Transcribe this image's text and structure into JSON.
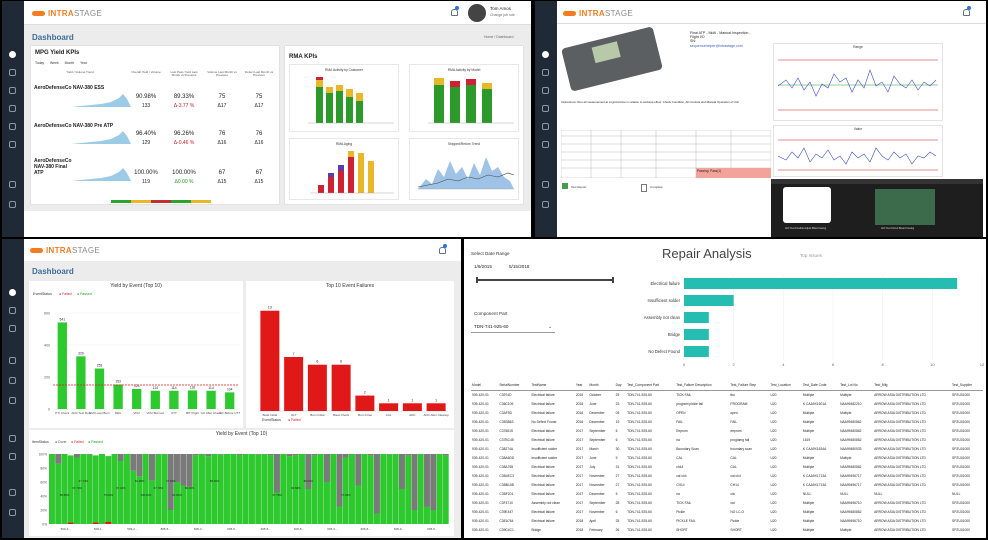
{
  "brand": {
    "name_a": "INTRA",
    "name_b": "STAGE",
    "color": "#f47b20"
  },
  "q1": {
    "user_name": "Tom Amos",
    "user_role": "Change job role",
    "title": "Dashboard",
    "crumb_home": "Home",
    "crumb_sep": "/",
    "crumb_page": "Dashboard",
    "mpg": {
      "title": "MPG Yield KPIs",
      "tabs": [
        "Today",
        "Week",
        "Month",
        "Year"
      ],
      "cols": [
        "Yield / Volume Trend",
        "Overall Yield / Volume",
        "Last Pass Yield Last Month vs Previous",
        "Volume Last Month vs Previous",
        "Defect Last Month vs Previous"
      ],
      "rows": [
        {
          "name": "AeroDefenseCo NAV-380 ESS",
          "yield": "90.98%",
          "vol": "133",
          "lpy": "89.33%",
          "lpy_d": "Δ-3.77 %",
          "volm": "75",
          "volm_d": "Δ17",
          "def": "75",
          "def_d": "Δ17"
        },
        {
          "name": "AeroDefenseCo NAV-380 Pre ATP",
          "yield": "96.40%",
          "vol": "129",
          "lpy": "96.26%",
          "lpy_d": "Δ-0.46 %",
          "volm": "76",
          "volm_d": "Δ16",
          "def": "76",
          "def_d": "Δ16"
        },
        {
          "name": "AeroDefenseCo NAV-380 Final ATP",
          "yield": "100.00%",
          "vol": "119",
          "lpy": "100.00%",
          "lpy_d": "Δ0.00 %",
          "volm": "67",
          "volm_d": "Δ15",
          "def": "67",
          "def_d": "Δ15"
        }
      ]
    },
    "rma": {
      "title": "RMA KPIs",
      "c1": "RMA Activity by Customer",
      "c2": "RMA Activity by Model",
      "c3": "RMA Aging",
      "c4": "Shipped/Return Trend"
    }
  },
  "q2": {
    "header_line1": "Final ATP - Multi - Manual Inspection -",
    "header_line2": "Flight I/O",
    "header_line3": "SN:",
    "header_line4": "sequencehelper@intrastage.com",
    "chart1_title": "Range",
    "chart2_title": "Value",
    "instruction": "Instructions: Run all measurement at a typical time in relation to ambient effect. Check Condition, All Controls and Manual Operation of Unit",
    "status": "Passing: Pass(1)",
    "bottom_left": "Test Report",
    "bottom_mid": "Complete",
    "img_label1": "AIO Test Flexible Adjust Blast Casing",
    "img_label2": "AIO Test Circuit Board Casing"
  },
  "q3": {
    "title": "Dashboard",
    "chart1": {
      "title": "Yield by Event (Top 10)",
      "legend_title": "EventStatus",
      "legend": [
        "Failed",
        "Passed"
      ],
      "categories": [
        "PTI Check",
        "ADC Test Run",
        "EMI Level Burn",
        "RDC",
        "VDU",
        "VDU Burnout",
        "UTT",
        "BIT Flight",
        "GC After Check",
        "GC Before UTT"
      ],
      "values": [
        541,
        329,
        253,
        153,
        125,
        114,
        114,
        116,
        114,
        104
      ],
      "labels": [
        "541",
        "329",
        "253",
        "153",
        "125",
        "114",
        "114",
        "116",
        "114",
        "104"
      ],
      "ylim": [
        0,
        600
      ],
      "yticks": [
        "600",
        "400",
        "200",
        "0"
      ]
    },
    "chart2": {
      "title": "Top 10 Event Failures",
      "legend_title": "EventStatus",
      "legend": [
        "Failed"
      ],
      "categories": [
        "Build Initial",
        "OLT",
        "Burn Initial",
        "Blast Check",
        "Burn Final",
        "CAL",
        "ADC",
        "ADC After Cleanup"
      ],
      "values": [
        13,
        7,
        6,
        6,
        2,
        1,
        1,
        1
      ],
      "labels": [
        "13",
        "7",
        "6",
        "6",
        "2",
        "1",
        "1",
        "1"
      ]
    },
    "chart3": {
      "title": "Yield by Event (Top 10)",
      "legend_title": "ItemStatus",
      "legend": [
        "Done",
        "Failed",
        "Passed"
      ],
      "yticks": [
        "100%",
        "80%",
        "60%",
        "40%",
        "20%",
        "0%"
      ],
      "xlabels": [
        "509-3...",
        "509-1...",
        "509-2...",
        "805-5...",
        "605-3...",
        "605-5...",
        "605-5...",
        "606-5...",
        "606-3...",
        "606-5...",
        "605-9...",
        "605-5..."
      ],
      "percent_labels": [
        "85.65%",
        "97.70%",
        "67.74%",
        "75.00%",
        "97.16%",
        "60.98%",
        "100.00%",
        "97.70%",
        "97.84%",
        "81.82%",
        "80.00%",
        "88.00%",
        "97.78%",
        "96.68%",
        "88.60%",
        "97.83%"
      ]
    }
  },
  "q4": {
    "date_label": "Select Date Range",
    "date_from": "1/9/2015",
    "date_to": "5/15/2018",
    "title": "Repair Analysis",
    "top_issues": "Top Issues",
    "component_label": "Component Part",
    "component_value": "TDN-741-925-60",
    "bar_categories": [
      "Electrical failure",
      "Insufficient solder",
      "Assembly not clean",
      "Bridge",
      "No Defect Found"
    ],
    "bar_values": [
      11,
      2,
      1,
      1,
      1
    ],
    "x_ticks": [
      "0",
      "2",
      "4",
      "6",
      "8",
      "10",
      "12"
    ],
    "columns": [
      "Model",
      "SerialNumber",
      "TestName",
      "Year",
      "Month",
      "Day",
      "Test_Component Part",
      "Test_Failure Description",
      "Test_Failure Step",
      "Test_Location",
      "Test_Date Code",
      "Test_Lot No",
      "Test_Mfg",
      "Test_Supplier"
    ],
    "rows": [
      [
        "939-420-01",
        "C3974D",
        "Electrical failure",
        "2016",
        "October",
        "25",
        "TDN-741-925-60",
        "TICK FAIL",
        "tbu",
        "U20",
        "Multiple",
        "Multiple",
        "ARROW ASIA DISTRIBUTION LTD",
        "SPZU01000"
      ],
      [
        "939-420-01",
        "C36C109",
        "Electrical failure",
        "2016",
        "June",
        "23",
        "TDN-741-925-60",
        "program pickle fail",
        "PROGRAM",
        "U20",
        "K CAA9X1601A",
        "NAA99482210",
        "ARROW ASIA DISTRIBUTION LTD",
        "SPZU01000"
      ],
      [
        "939-420-01",
        "C3AF9D",
        "Electrical failure",
        "2016",
        "December",
        "05",
        "TDN-741-925-60",
        "OPEN",
        "open",
        "U20",
        "Multiple",
        "Multiple",
        "ARROW ASIA DISTRIBUTION LTD",
        "SPZU01000"
      ],
      [
        "939-420-01",
        "C3B3B63",
        "No Defect Found",
        "2016",
        "December",
        "19",
        "TDN-741-925-60",
        "FAIL",
        "FAIL",
        "U20",
        "Multiple",
        "NAA99480862",
        "ARROW ASIA DISTRIBUTION LTD",
        "SPZU01000"
      ],
      [
        "939-420-01",
        "C37681S",
        "Electrical failure",
        "2017",
        "September",
        "6",
        "TDN-741-925-60",
        "Eeprom",
        "eeprom",
        "U20",
        "Multiple",
        "NAA99480862",
        "ARROW ASIA DISTRIBUTION LTD",
        "SPZU01000"
      ],
      [
        "939-420-01",
        "C37BC45",
        "Electrical failure",
        "2017",
        "September",
        "6",
        "TDN-741-925-60",
        "na",
        "proglamg fail",
        "U20",
        "1619",
        "NAA99480862",
        "ARROW ASIA DISTRIBUTION LTD",
        "SPZU01000"
      ],
      [
        "939-420-01",
        "C38274A",
        "Insufficient solder",
        "2017",
        "March",
        "30",
        "TDN-741-925-60",
        "Boundary Scan",
        "boundary scan",
        "U20",
        "K CAA9X1634A",
        "NAA99480533",
        "ARROW ASIA DISTRIBUTION LTD",
        "SPZU01000"
      ],
      [
        "939-420-01",
        "C38A6DD",
        "Insufficient solder",
        "2017",
        "June",
        "9",
        "TDN-741-925-60",
        "CAL",
        "CAL",
        "U20",
        "Multiple",
        "Multiple",
        "ARROW ASIA DISTRIBUTION LTD",
        "SPZU01000"
      ],
      [
        "939-420-01",
        "C38A765",
        "Electrical failure",
        "2017",
        "July",
        "31",
        "TDN-741-925-60",
        "ch44",
        "CAL",
        "U20",
        "Multiple",
        "NAA99480862",
        "ARROW ASIA DISTRIBUTION LTD",
        "SPZU01000"
      ],
      [
        "939-420-01",
        "C3B4EC3",
        "Electrical failure",
        "2017",
        "November",
        "27",
        "TDN-741-925-60",
        "cal ch4",
        "cal ch4",
        "U20",
        "K CAA9X1713A",
        "NAA99496717",
        "ARROW ASIA DISTRIBUTION LTD",
        "SPZU01000"
      ],
      [
        "939-420-01",
        "C3BB14B",
        "Electrical failure",
        "2017",
        "November",
        "27",
        "TDN-741-925-60",
        "CH14",
        "CH14",
        "U20",
        "K CAA9X1713A",
        "NAA99496717",
        "ARROW ASIA DISTRIBUTION LTD",
        "SPZU01000"
      ],
      [
        "939-420-01",
        "C3BF201",
        "Electrical failure",
        "2017",
        "December",
        "5",
        "TDN-741-925-60",
        "na",
        "cla",
        "U20",
        "NULL",
        "NULL",
        "NULL",
        "NULL"
      ],
      [
        "939-420-01",
        "C3F4710",
        "Assembly not clean",
        "2017",
        "September",
        "28",
        "TDN-741-925-60",
        "TICK FAIL",
        "cal",
        "U20",
        "Multiple",
        "NAA99496710",
        "ARROW ASIA DISTRIBUTION LTD",
        "SPZU01000"
      ],
      [
        "939-420-01",
        "C39E447",
        "Electrical failure",
        "2017",
        "November",
        "6",
        "TDN-741-925-60",
        "Pickle",
        "NO LC-O",
        "U20",
        "Multiple",
        "NAA99480862",
        "ARROW ASIA DISTRIBUTION LTD",
        "SPZU01000"
      ],
      [
        "939-420-01",
        "C3EA764",
        "Electrical failure",
        "2018",
        "April",
        "25",
        "TDN-741-925-60",
        "PICKLE FAIL",
        "Pickle",
        "U20",
        "Multiple",
        "NAA99496710",
        "ARROW ASIA DISTRIBUTION LTD",
        "SPZU01000"
      ],
      [
        "939-420-01",
        "C39C4C1",
        "Bridge",
        "2018",
        "February",
        "26",
        "TDN-741-925-60",
        "SHORT",
        "SHORT",
        "U20",
        "Multiple",
        "Multiple",
        "ARROW ASIA DISTRIBUTION LTD",
        "SPZU01000"
      ]
    ]
  },
  "colors": {
    "pass": "#2ec92e",
    "fail": "#e01818",
    "done": "#7a7a7a",
    "teal": "#25bdb2",
    "nav": "#1f2a36"
  }
}
